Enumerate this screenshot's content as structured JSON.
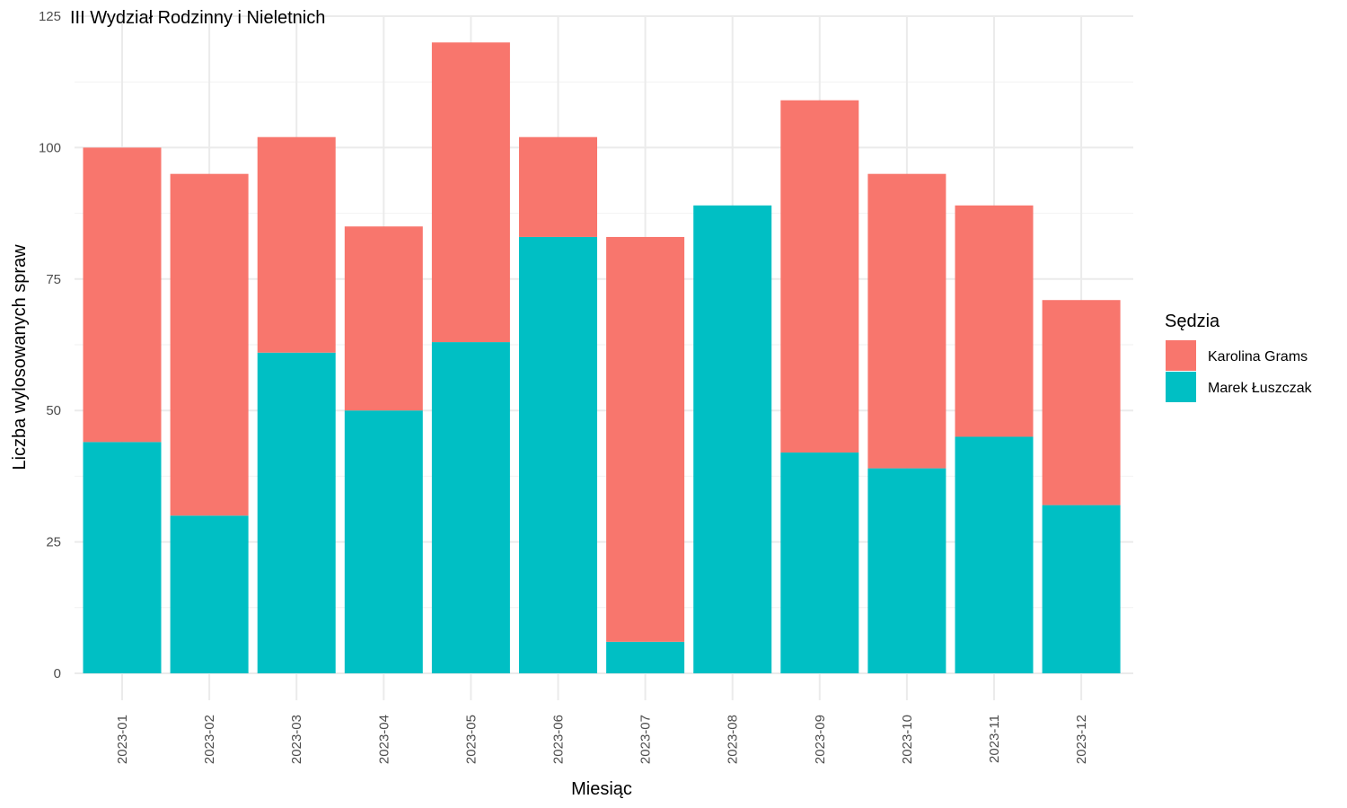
{
  "chart_data": {
    "type": "bar",
    "stacked": true,
    "title": "III Wydział Rodzinny i Nieletnich",
    "xlabel": "Miesiąc",
    "ylabel": "Liczba wylosowanych spraw",
    "ylim": [
      0,
      125
    ],
    "yticks": [
      "0",
      "25",
      "50",
      "75",
      "100",
      "125"
    ],
    "grid": true,
    "legend_title": "Sędzia",
    "legend_position": "right",
    "categories": [
      "2023-01",
      "2023-02",
      "2023-03",
      "2023-04",
      "2023-05",
      "2023-06",
      "2023-07",
      "2023-08",
      "2023-09",
      "2023-10",
      "2023-11",
      "2023-12"
    ],
    "series": [
      {
        "name": "Karolina Grams",
        "color": "#F8766D",
        "values": [
          56,
          65,
          41,
          35,
          57,
          19,
          77,
          0,
          67,
          56,
          44,
          39
        ]
      },
      {
        "name": "Marek Łuszczak",
        "color": "#00BFC4",
        "values": [
          44,
          30,
          61,
          50,
          63,
          83,
          6,
          89,
          42,
          39,
          45,
          32
        ]
      }
    ]
  }
}
